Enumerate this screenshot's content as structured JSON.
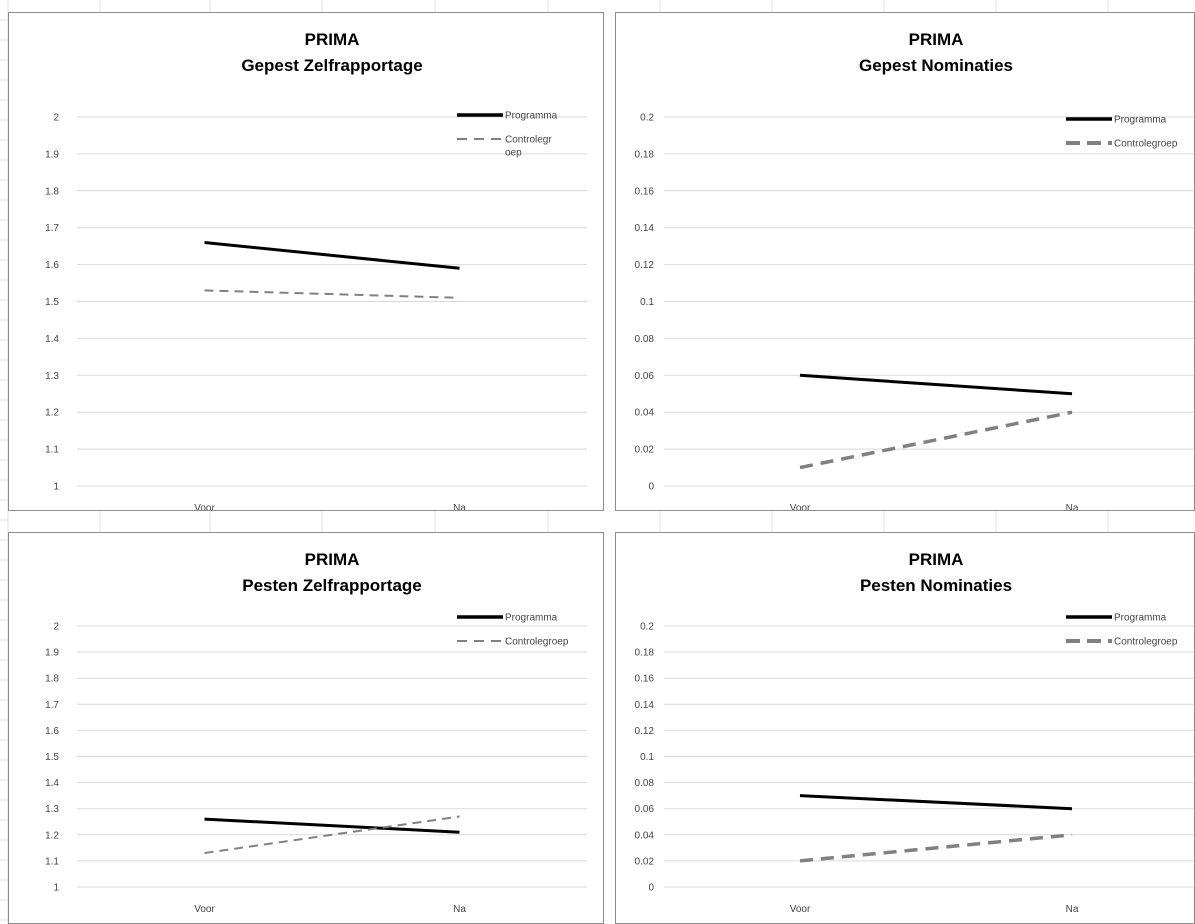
{
  "caption": "",
  "chart_data": [
    {
      "type": "line",
      "title": [
        "PRIMA",
        "Gepest Zelfrapportage"
      ],
      "categories": [
        "Voor",
        "Na"
      ],
      "yticks": [
        "1",
        "1.1",
        "1.2",
        "1.3",
        "1.4",
        "1.5",
        "1.6",
        "1.7",
        "1.8",
        "1.9",
        "2"
      ],
      "ylim": [
        1,
        2
      ],
      "series": [
        {
          "name": "Programma",
          "values": [
            1.66,
            1.59
          ],
          "color": "#000000",
          "style": "solid"
        },
        {
          "name": "Controlegroep",
          "legend_lines": [
            "Controlegr",
            "oep"
          ],
          "values": [
            1.53,
            1.51
          ],
          "color": "#808080",
          "style": "dashed-thin"
        }
      ],
      "legend": "top-right",
      "grid": true
    },
    {
      "type": "line",
      "title": [
        "PRIMA",
        "Gepest Nominaties"
      ],
      "categories": [
        "Voor",
        "Na"
      ],
      "yticks": [
        "0",
        "0.02",
        "0.04",
        "0.06",
        "0.08",
        "0.1",
        "0.12",
        "0.14",
        "0.16",
        "0.18",
        "0.2"
      ],
      "ylim": [
        0,
        0.2
      ],
      "series": [
        {
          "name": "Programma",
          "values": [
            0.06,
            0.05
          ],
          "color": "#000000",
          "style": "solid"
        },
        {
          "name": "Controlegroep",
          "legend_lines": [
            "Controlegroep"
          ],
          "values": [
            0.01,
            0.04
          ],
          "color": "#808080",
          "style": "dashed-thick"
        }
      ],
      "legend": "top-right",
      "grid": true
    },
    {
      "type": "line",
      "title": [
        "PRIMA",
        "Pesten Zelfrapportage"
      ],
      "categories": [
        "Voor",
        "Na"
      ],
      "yticks": [
        "1",
        "1.1",
        "1.2",
        "1.3",
        "1.4",
        "1.5",
        "1.6",
        "1.7",
        "1.8",
        "1.9",
        "2"
      ],
      "ylim": [
        1,
        2
      ],
      "series": [
        {
          "name": "Programma",
          "values": [
            1.26,
            1.21
          ],
          "color": "#000000",
          "style": "solid"
        },
        {
          "name": "Controlegroep",
          "legend_lines": [
            "Controlegroep"
          ],
          "values": [
            1.13,
            1.27
          ],
          "color": "#808080",
          "style": "dashed-thin"
        }
      ],
      "legend": "top-right",
      "grid": true
    },
    {
      "type": "line",
      "title": [
        "PRIMA",
        "Pesten Nominaties"
      ],
      "categories": [
        "Voor",
        "Na"
      ],
      "yticks": [
        "0",
        "0.02",
        "0.04",
        "0.06",
        "0.08",
        "0.1",
        "0.12",
        "0.14",
        "0.16",
        "0.18",
        "0.2"
      ],
      "ylim": [
        0,
        0.2
      ],
      "series": [
        {
          "name": "Programma",
          "values": [
            0.07,
            0.06
          ],
          "color": "#000000",
          "style": "solid"
        },
        {
          "name": "Controlegroep",
          "legend_lines": [
            "Controlegroep"
          ],
          "values": [
            0.02,
            0.04
          ],
          "color": "#808080",
          "style": "dashed-thick"
        }
      ],
      "legend": "top-right",
      "grid": true
    }
  ]
}
